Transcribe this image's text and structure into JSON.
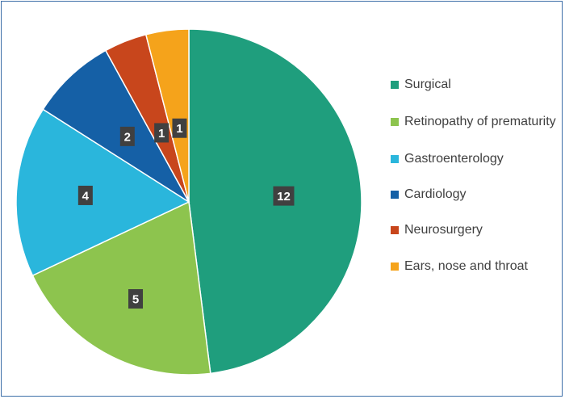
{
  "chart_data": {
    "type": "pie",
    "categories": [
      "Surgical",
      "Retinopathy of prematurity",
      "Gastroenterology",
      "Cardiology",
      "Neurosurgery",
      "Ears, nose and throat"
    ],
    "values": [
      12,
      5,
      4,
      2,
      1,
      1
    ],
    "data_labels": [
      "12",
      "5",
      "4",
      "2",
      "1",
      "1"
    ],
    "colors": [
      "#1f9e7d",
      "#8dc44e",
      "#2ab6dc",
      "#1560a6",
      "#c8461c",
      "#f5a31b"
    ],
    "start_angle": "12 o'clock",
    "direction": "clockwise",
    "legend": "right",
    "title": ""
  }
}
